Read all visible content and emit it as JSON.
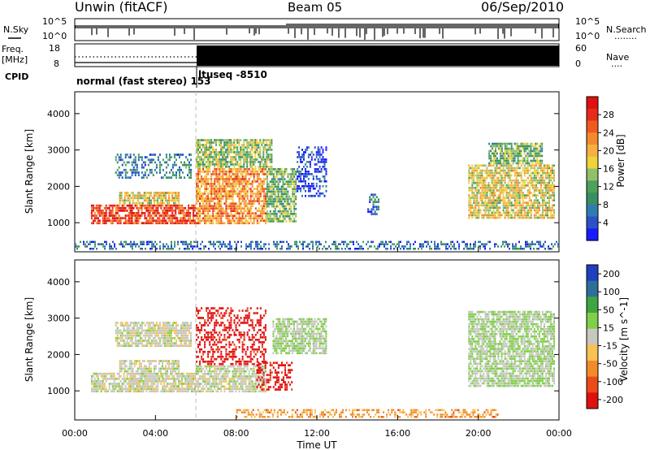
{
  "header": {
    "station": "Unwin (fitACF)",
    "beam": "Beam 05",
    "date": "06/Sep/2010"
  },
  "top_panel": {
    "left_label": "N.Sky",
    "left_ticks": [
      "10^5",
      "10^0"
    ],
    "right_ticks": [
      "10^5",
      "10^0"
    ],
    "right_label": "N.Search",
    "right_dots": "........"
  },
  "freq_panel": {
    "left_label_1": "Freq.",
    "left_label_2": "[MHz]",
    "left_ticks": [
      "18",
      "8"
    ],
    "right_ticks": [
      "60",
      "0"
    ],
    "right_label": "Nave",
    "right_dots": "....",
    "cpid_label": "CPID",
    "cpid_text_1": "normal (fast stereo) 153",
    "cpid_text_2": "ltuseq -8510"
  },
  "colors": {
    "power": [
      "#1a1aff",
      "#2a52c8",
      "#2f7db0",
      "#3a8f62",
      "#4fa05a",
      "#8fc06a",
      "#f0d23a",
      "#f6b040",
      "#f48a2c",
      "#ef5a20",
      "#e82a18",
      "#e01010"
    ],
    "velocity": [
      "#e01010",
      "#ec4a18",
      "#f28a2a",
      "#f7c252",
      "#c8c8c0",
      "#7fcf4a",
      "#3fa542",
      "#2c6f9a",
      "#2040c0"
    ],
    "grid": "#999999"
  },
  "chart_data": [
    {
      "type": "heatmap",
      "quantity": "power",
      "xlabel": "",
      "ylabel": "Slant Range [km]",
      "xlim": [
        "00:00",
        "24:00"
      ],
      "ylim": [
        200,
        4600
      ],
      "yticks": [
        1000,
        2000,
        3000,
        4000
      ],
      "colorbar_label": "Power [dB]",
      "colorbar_ticks": [
        "4",
        "8",
        "12",
        "16",
        "20",
        "24",
        "28"
      ],
      "mode_change_time": "06:00",
      "echo_regions": [
        {
          "t0": 0.8,
          "t1": 6.0,
          "r0": 950,
          "r1": 1500,
          "level": 0.85
        },
        {
          "t0": 2.2,
          "t1": 5.2,
          "r0": 1500,
          "r1": 1850,
          "level": 0.55
        },
        {
          "t0": 2.0,
          "t1": 5.8,
          "r0": 2200,
          "r1": 2900,
          "level": 0.25
        },
        {
          "t0": 6.0,
          "t1": 9.5,
          "r0": 950,
          "r1": 2500,
          "level": 0.7
        },
        {
          "t0": 6.0,
          "t1": 9.8,
          "r0": 2500,
          "r1": 3300,
          "level": 0.45
        },
        {
          "t0": 9.5,
          "t1": 11.0,
          "r0": 1000,
          "r1": 2500,
          "level": 0.4
        },
        {
          "t0": 11.0,
          "t1": 12.5,
          "r0": 1700,
          "r1": 3100,
          "level": 0.1
        },
        {
          "t0": 14.5,
          "t1": 15.1,
          "r0": 1200,
          "r1": 1800,
          "level": 0.2
        },
        {
          "t0": 19.5,
          "t1": 23.8,
          "r0": 1100,
          "r1": 2600,
          "level": 0.55
        },
        {
          "t0": 20.5,
          "t1": 23.2,
          "r0": 2600,
          "r1": 3200,
          "level": 0.4
        },
        {
          "t0": 0.0,
          "t1": 24.0,
          "r0": 250,
          "r1": 500,
          "level": 0.2
        }
      ]
    },
    {
      "type": "heatmap",
      "quantity": "velocity",
      "xlabel": "Time UT",
      "ylabel": "Slant Range [km]",
      "xlim": [
        "00:00",
        "24:00"
      ],
      "ylim": [
        200,
        4600
      ],
      "xticks": [
        "00:00",
        "04:00",
        "08:00",
        "12:00",
        "16:00",
        "20:00",
        "00:00"
      ],
      "yticks": [
        1000,
        2000,
        3000,
        4000
      ],
      "colorbar_label": "Velocity [m s^-1]",
      "colorbar_ticks": [
        "200",
        "100",
        "50",
        "15",
        "-15",
        "-50",
        "-100",
        "-200"
      ],
      "mode_change_time": "06:00",
      "echo_regions": [
        {
          "t0": 0.8,
          "t1": 6.0,
          "r0": 950,
          "r1": 1500,
          "level": 0.5
        },
        {
          "t0": 2.2,
          "t1": 5.2,
          "r0": 1500,
          "r1": 1850,
          "level": 0.5
        },
        {
          "t0": 2.0,
          "t1": 5.8,
          "r0": 2200,
          "r1": 2900,
          "level": 0.5
        },
        {
          "t0": 6.0,
          "t1": 9.5,
          "r0": 950,
          "r1": 1700,
          "level": 0.5
        },
        {
          "t0": 6.0,
          "t1": 9.5,
          "r0": 1700,
          "r1": 3300,
          "level": 0.05
        },
        {
          "t0": 9.0,
          "t1": 10.8,
          "r0": 1000,
          "r1": 1800,
          "level": 0.05
        },
        {
          "t0": 9.8,
          "t1": 12.5,
          "r0": 2000,
          "r1": 3000,
          "level": 0.55
        },
        {
          "t0": 19.5,
          "t1": 23.8,
          "r0": 1100,
          "r1": 3200,
          "level": 0.55
        },
        {
          "t0": 8.0,
          "t1": 21.0,
          "r0": 250,
          "r1": 500,
          "level": 0.3
        }
      ]
    }
  ]
}
